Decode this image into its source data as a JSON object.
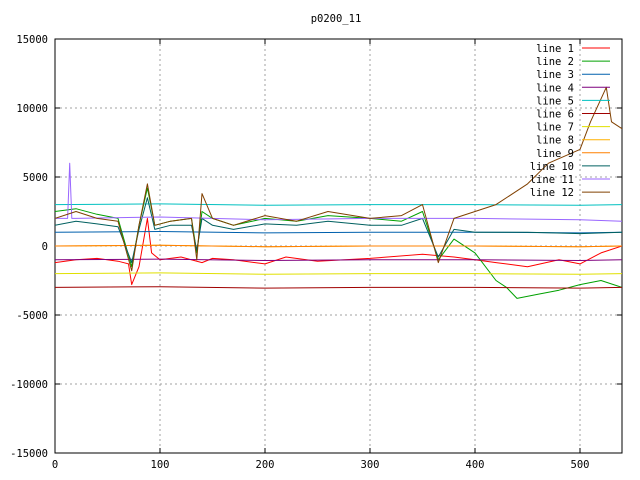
{
  "chart_data": {
    "type": "line",
    "title": "p0200_11",
    "xlabel": "",
    "ylabel": "",
    "xlim": [
      0,
      540
    ],
    "ylim": [
      -15000,
      15000
    ],
    "xticks": [
      0,
      100,
      200,
      300,
      400,
      500
    ],
    "yticks": [
      -15000,
      -10000,
      -5000,
      0,
      5000,
      10000,
      15000
    ],
    "grid": true,
    "legend_position": "top-right",
    "series": [
      {
        "name": "line 1",
        "color": "#ff0000",
        "x": [
          0,
          20,
          40,
          60,
          70,
          73,
          80,
          88,
          92,
          100,
          120,
          140,
          150,
          170,
          200,
          220,
          250,
          300,
          350,
          380,
          400,
          420,
          450,
          480,
          500,
          520,
          540
        ],
        "y": [
          -1200,
          -1000,
          -900,
          -1100,
          -1300,
          -2800,
          -1500,
          2000,
          -500,
          -1000,
          -800,
          -1200,
          -900,
          -1000,
          -1300,
          -800,
          -1100,
          -900,
          -600,
          -800,
          -1000,
          -1200,
          -1500,
          -1000,
          -1300,
          -500,
          0
        ]
      },
      {
        "name": "line 2",
        "color": "#00a000",
        "x": [
          0,
          20,
          40,
          60,
          73,
          80,
          88,
          95,
          110,
          130,
          135,
          140,
          150,
          170,
          200,
          230,
          260,
          300,
          330,
          350,
          365,
          380,
          400,
          420,
          430,
          440,
          460,
          480,
          500,
          520,
          540
        ],
        "y": [
          2500,
          2700,
          2300,
          2000,
          -1500,
          1500,
          4200,
          1500,
          1800,
          2000,
          -500,
          2500,
          2000,
          1500,
          2000,
          1800,
          2200,
          2000,
          1800,
          2500,
          -1000,
          500,
          -500,
          -2500,
          -3000,
          -3800,
          -3500,
          -3200,
          -2800,
          -2500,
          -3000
        ]
      },
      {
        "name": "line 3",
        "color": "#0060ad",
        "x": [
          0,
          100,
          200,
          300,
          400,
          500,
          540
        ],
        "y": [
          1000,
          1050,
          950,
          1000,
          1000,
          950,
          1000
        ]
      },
      {
        "name": "line 4",
        "color": "#7f007f",
        "x": [
          0,
          100,
          200,
          300,
          400,
          500,
          540
        ],
        "y": [
          -1000,
          -950,
          -1050,
          -1000,
          -1000,
          -1050,
          -1000
        ]
      },
      {
        "name": "line 5",
        "color": "#00c0c0",
        "x": [
          0,
          100,
          200,
          300,
          400,
          500,
          540
        ],
        "y": [
          3000,
          3050,
          2950,
          3000,
          3000,
          2950,
          3000
        ]
      },
      {
        "name": "line 6",
        "color": "#a00000",
        "x": [
          0,
          100,
          200,
          300,
          400,
          500,
          540
        ],
        "y": [
          -3000,
          -2950,
          -3050,
          -3000,
          -3000,
          -3050,
          -3000
        ]
      },
      {
        "name": "line 7",
        "color": "#e0e000",
        "x": [
          0,
          100,
          200,
          300,
          400,
          500,
          540
        ],
        "y": [
          -2000,
          -1950,
          -2050,
          -2000,
          -2000,
          -2050,
          -2000
        ]
      },
      {
        "name": "line 8",
        "color": "#ffb000",
        "x": [
          0,
          100,
          200,
          300,
          400,
          500,
          540
        ],
        "y": [
          0,
          50,
          -50,
          0,
          0,
          -50,
          0
        ]
      },
      {
        "name": "line 9",
        "color": "#ff8000",
        "x": [
          0,
          100,
          200,
          300,
          400,
          500,
          540
        ],
        "y": [
          0,
          50,
          -50,
          0,
          0,
          -50,
          0
        ]
      },
      {
        "name": "line 10",
        "color": "#006060",
        "x": [
          0,
          20,
          40,
          60,
          73,
          80,
          88,
          95,
          110,
          130,
          135,
          140,
          150,
          170,
          200,
          230,
          260,
          300,
          330,
          350,
          365,
          380,
          400,
          450,
          500,
          540
        ],
        "y": [
          1500,
          1800,
          1600,
          1400,
          -1200,
          1200,
          3500,
          1200,
          1500,
          1500,
          -300,
          2000,
          1500,
          1200,
          1600,
          1500,
          1800,
          1500,
          1500,
          2000,
          -800,
          1200,
          1000,
          1000,
          900,
          1000
        ]
      },
      {
        "name": "line 11",
        "color": "#9966ff",
        "x": [
          0,
          12,
          14,
          16,
          20,
          100,
          200,
          300,
          400,
          500,
          540
        ],
        "y": [
          2000,
          2000,
          6000,
          2000,
          2000,
          2100,
          1900,
          2000,
          2000,
          1900,
          1800
        ]
      },
      {
        "name": "line 12",
        "color": "#804000",
        "x": [
          0,
          20,
          40,
          60,
          73,
          80,
          88,
          95,
          110,
          130,
          135,
          140,
          150,
          170,
          200,
          230,
          260,
          300,
          330,
          350,
          365,
          380,
          400,
          420,
          450,
          470,
          500,
          510,
          525,
          530,
          540
        ],
        "y": [
          2000,
          2500,
          2000,
          1800,
          -1800,
          1500,
          4500,
          1500,
          1800,
          2000,
          -1000,
          3800,
          2000,
          1500,
          2200,
          1800,
          2500,
          2000,
          2200,
          3000,
          -1200,
          2000,
          2500,
          3000,
          4500,
          6000,
          7000,
          9000,
          11500,
          9000,
          8500
        ]
      }
    ]
  }
}
